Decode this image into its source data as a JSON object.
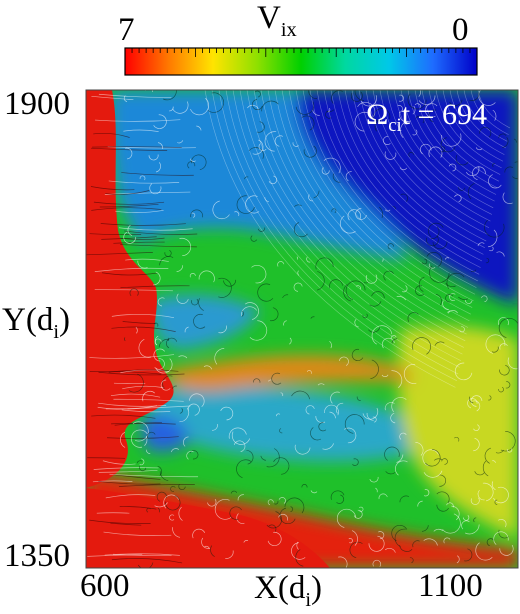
{
  "colorbar": {
    "title": "V",
    "title_sub": "ix",
    "min_label": "7",
    "max_label": "0",
    "stops": [
      "#ff0000",
      "#ff7a00",
      "#ffe400",
      "#8fe000",
      "#00d000",
      "#00d8a0",
      "#00c8e8",
      "#1e6cff",
      "#0000c8"
    ]
  },
  "annotation": {
    "prefix": "Ω",
    "sub": "ci",
    "suffix": "t = 694"
  },
  "chart_data": {
    "type": "heatmap",
    "title": "",
    "xlabel": "X(d",
    "xlabel_sub": "i",
    "xlabel_end": ")",
    "ylabel": "Y(d",
    "ylabel_sub": "i",
    "ylabel_end": ")",
    "xlim": [
      600,
      1100
    ],
    "ylim": [
      1350,
      1900
    ],
    "xtick_labels": [
      "600",
      "1100"
    ],
    "ytick_labels": [
      "1900",
      "1350"
    ],
    "colorbar_range": [
      7,
      0
    ],
    "colormap": "rainbow (red=7 to blue=0)",
    "overlay": "in-plane flow streamlines"
  }
}
